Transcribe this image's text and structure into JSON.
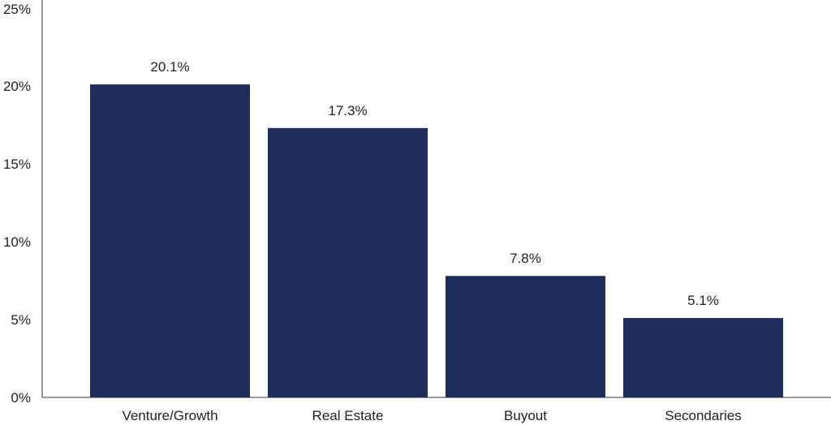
{
  "chart_data": {
    "type": "bar",
    "categories": [
      "Venture/Growth",
      "Real Estate",
      "Buyout",
      "Secondaries"
    ],
    "values": [
      20.1,
      17.3,
      7.8,
      5.1
    ],
    "data_labels": [
      "20.1%",
      "17.3%",
      "7.8%",
      "5.1%"
    ],
    "y_ticks": [
      0,
      5,
      10,
      15,
      20,
      25
    ],
    "y_tick_labels": [
      "0%",
      "5%",
      "10%",
      "15%",
      "20%",
      "25%"
    ],
    "ylim": [
      0,
      25
    ],
    "grid": false,
    "legend": "none",
    "bar_color": "#1f2d5c"
  }
}
